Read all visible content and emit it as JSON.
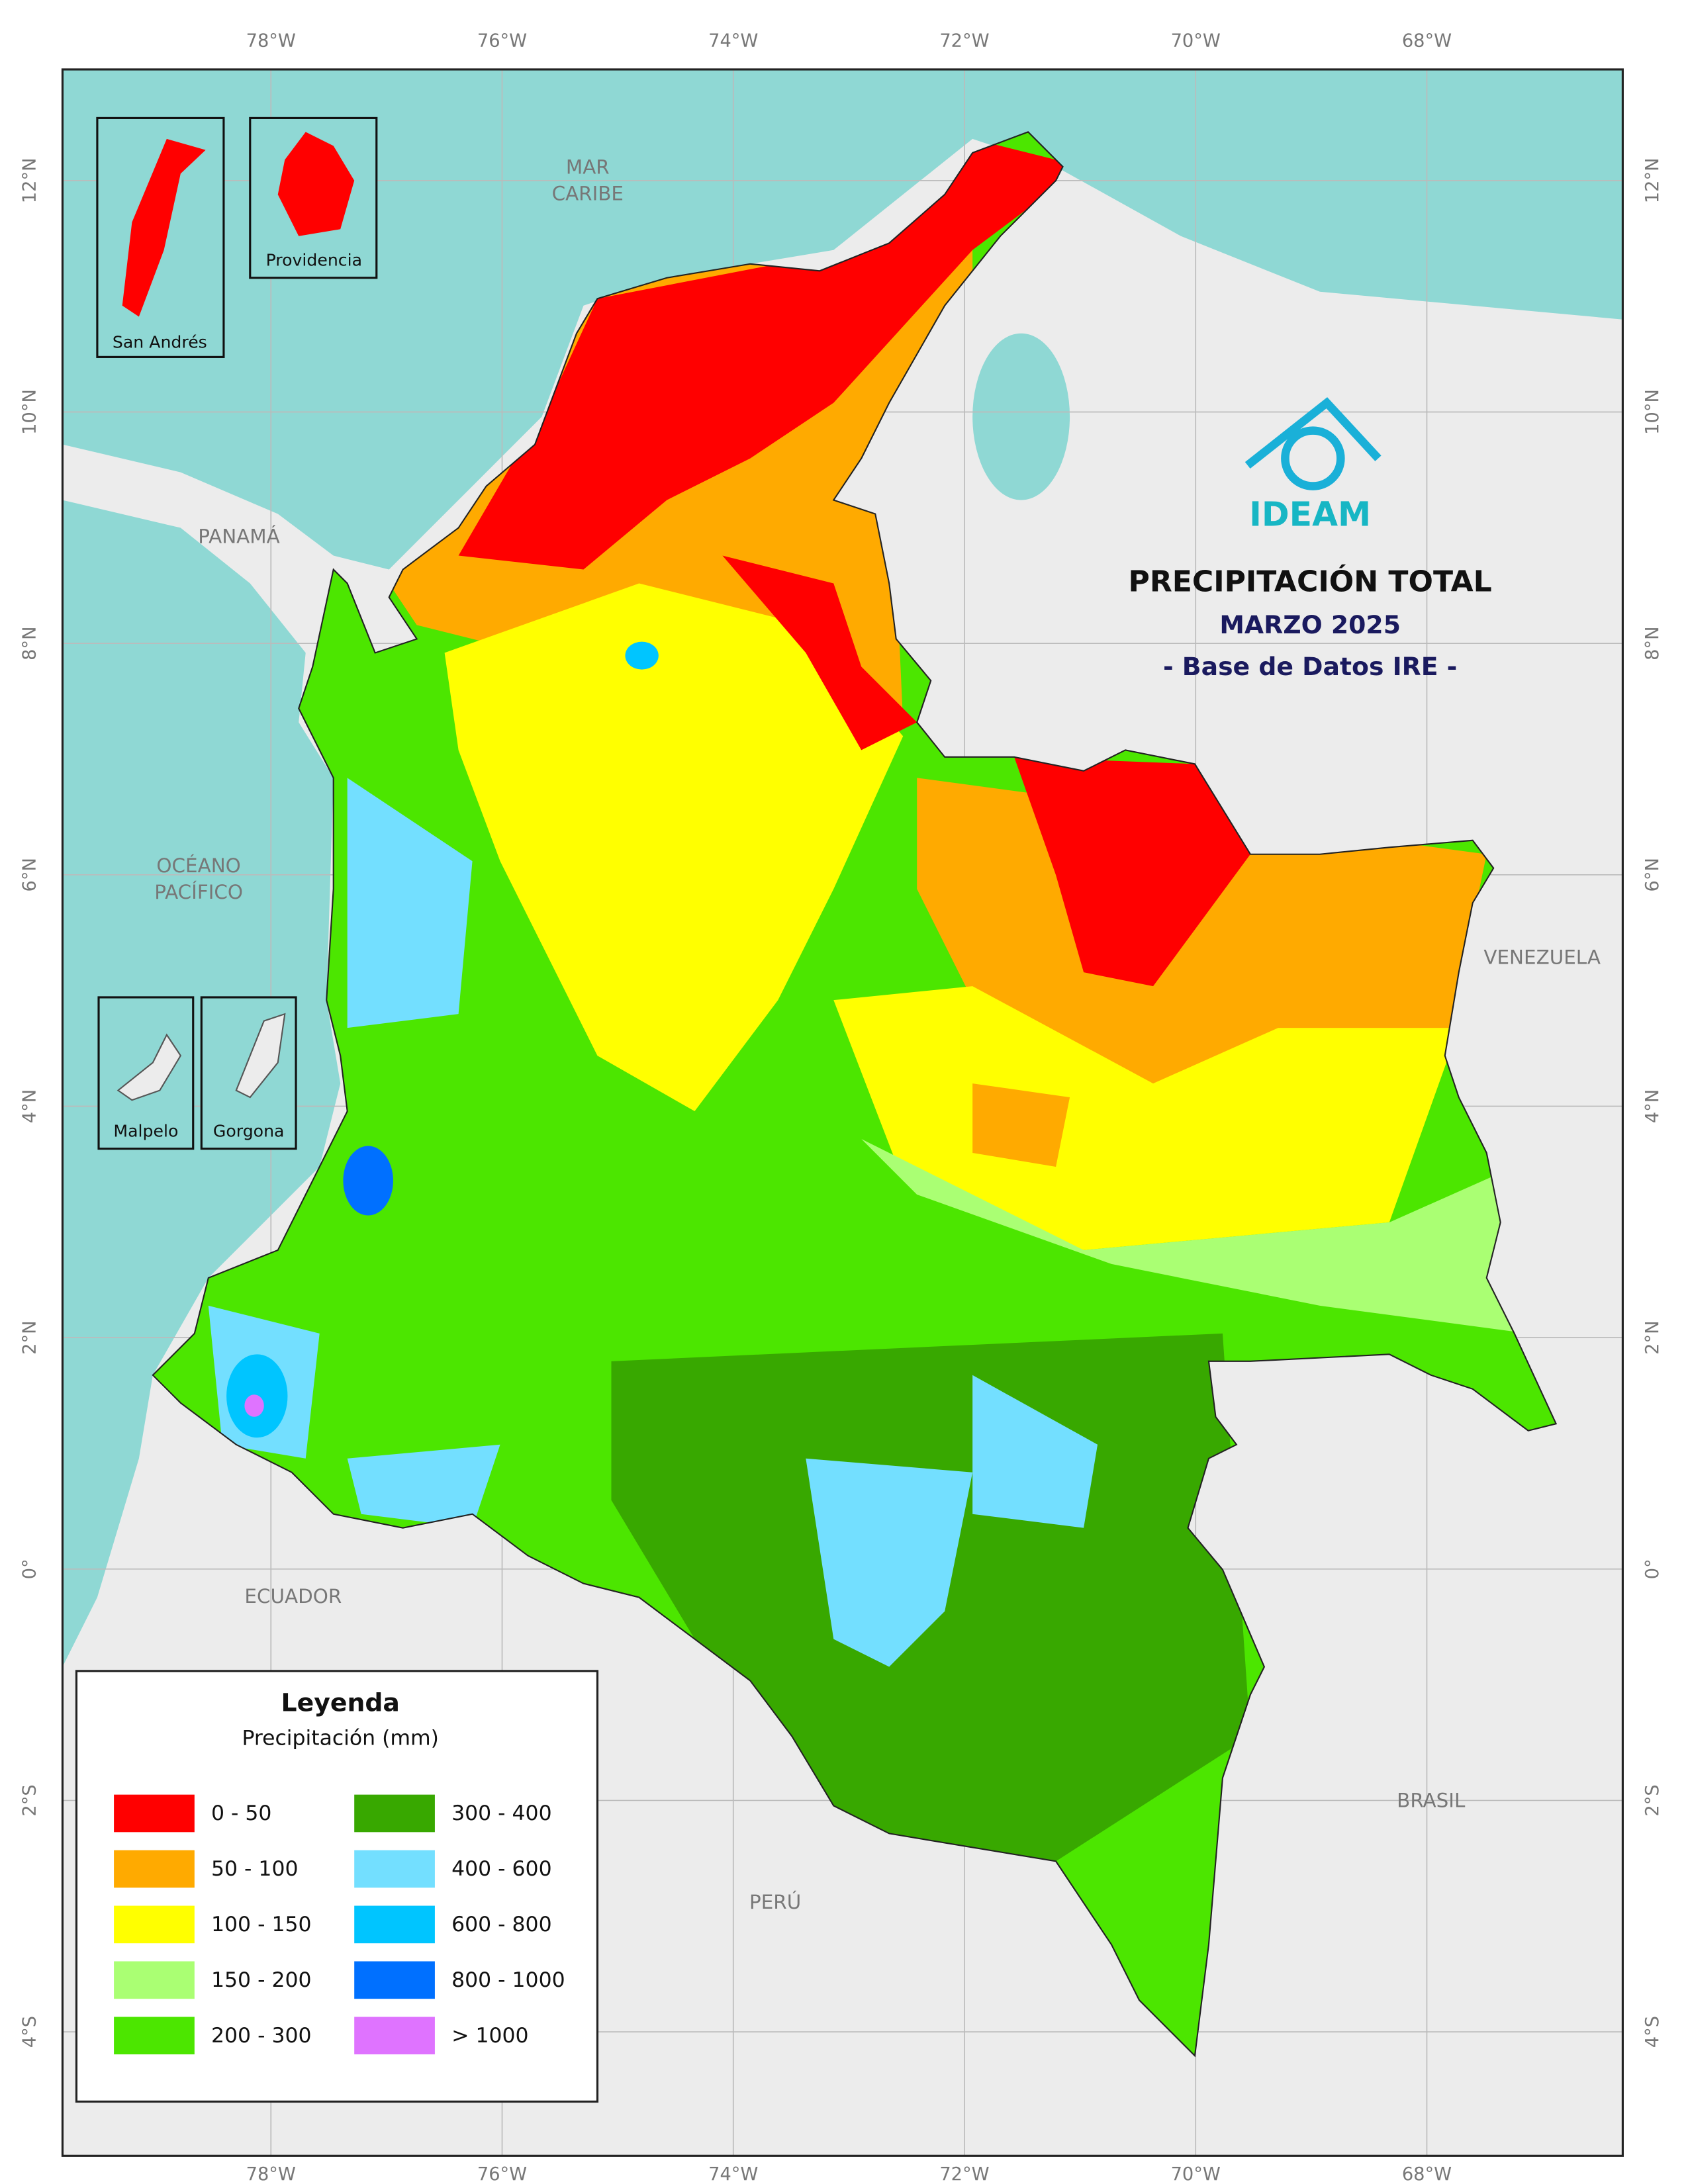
{
  "title": "PRECIPITACIÓN TOTAL",
  "subtitle": "MARZO 2025",
  "source": "- Base de Datos IRE -",
  "logo": "IDEAM",
  "places": {
    "sea_caribbean": [
      "MAR",
      "CARIBE"
    ],
    "sea_pacific": [
      "OCÉANO",
      "PACÍFICO"
    ],
    "panama": "PANAMÁ",
    "venezuela": "VENEZUELA",
    "ecuador": "ECUADOR",
    "peru": "PERÚ",
    "brasil": "BRASIL"
  },
  "insets": [
    "San Andrés",
    "Providencia",
    "Malpelo",
    "Gorgona"
  ],
  "legend": {
    "title": "Leyenda",
    "subtitle": "Precipitación (mm)",
    "items": [
      {
        "label": "0 - 50",
        "color": "#ff0000"
      },
      {
        "label": "50 - 100",
        "color": "#ffaa00"
      },
      {
        "label": "100 - 150",
        "color": "#ffff00"
      },
      {
        "label": "150 - 200",
        "color": "#aaff73"
      },
      {
        "label": "200 - 300",
        "color": "#4ce600"
      },
      {
        "label": "300 - 400",
        "color": "#38a800"
      },
      {
        "label": "400 - 600",
        "color": "#73dfff"
      },
      {
        "label": "600 - 800",
        "color": "#00c5ff"
      },
      {
        "label": "800 - 1000",
        "color": "#0070ff"
      },
      {
        "label": "> 1000",
        "color": "#df73ff"
      }
    ]
  },
  "graticule": {
    "lon": [
      {
        "value": -78,
        "label": "78°W"
      },
      {
        "value": -76,
        "label": "76°W"
      },
      {
        "value": -74,
        "label": "74°W"
      },
      {
        "value": -72,
        "label": "72°W"
      },
      {
        "value": -70,
        "label": "70°W"
      },
      {
        "value": -68,
        "label": "68°W"
      }
    ],
    "lat": [
      {
        "value": 12,
        "label": "12°N"
      },
      {
        "value": 10,
        "label": "10°N"
      },
      {
        "value": 8,
        "label": "8°N"
      },
      {
        "value": 6,
        "label": "6°N"
      },
      {
        "value": 4,
        "label": "4°N"
      },
      {
        "value": 2,
        "label": "2°N"
      },
      {
        "value": 0,
        "label": "0°"
      },
      {
        "value": -2,
        "label": "2°S"
      },
      {
        "value": -4,
        "label": "4°S"
      }
    ]
  }
}
